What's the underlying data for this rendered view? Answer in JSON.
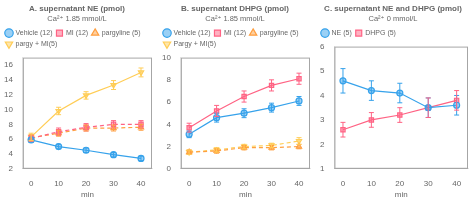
{
  "chart_data": [
    {
      "type": "line",
      "title": "A. supernatant NE (pmol)",
      "subtitle": "Ca²⁺ 1.85 mmol/L",
      "x_label": "min",
      "x": [
        0,
        10,
        20,
        30,
        40
      ],
      "xlim": [
        -3,
        44
      ],
      "xticks": [
        0,
        10,
        20,
        30,
        40
      ],
      "ylim": [
        2,
        17
      ],
      "yticks": [
        2,
        4,
        6,
        8,
        10,
        12,
        14,
        16
      ],
      "grid": false,
      "legend": "upper left",
      "series": [
        {
          "name": "Vehicle (12)",
          "values": [
            5.9,
            5.0,
            4.5,
            3.9,
            3.4
          ],
          "errors": [
            0.3,
            0.3,
            0.3,
            0.3,
            0.3
          ],
          "marker": "circle",
          "line_style": "solid"
        },
        {
          "name": "MI (12)",
          "values": [
            6.1,
            7.0,
            7.6,
            8.0,
            8.0
          ],
          "errors": [
            0.4,
            0.5,
            0.5,
            0.5,
            0.5
          ],
          "marker": "square",
          "line_style": "dashed"
        },
        {
          "name": "pargyline (5)",
          "values": [
            6.2,
            6.8,
            7.5,
            7.5,
            7.6
          ],
          "errors": [
            0.4,
            0.4,
            0.4,
            0.4,
            0.4
          ],
          "marker": "triangle-up",
          "line_style": "dashed"
        },
        {
          "name": "pargy + MI(5)",
          "values": [
            6.3,
            9.8,
            11.9,
            13.3,
            15.0
          ],
          "errors": [
            0.5,
            0.5,
            0.5,
            0.6,
            0.6
          ],
          "marker": "triangle-down",
          "line_style": "solid"
        }
      ]
    },
    {
      "type": "line",
      "title": "B. supernatant DHPG (pmol)",
      "subtitle": "Ca²⁺ 1.85 mmol/L",
      "x_label": "min",
      "x": [
        0,
        10,
        20,
        30,
        40
      ],
      "xlim": [
        -3,
        44
      ],
      "xticks": [
        0,
        10,
        20,
        30,
        40
      ],
      "ylim": [
        0,
        10
      ],
      "yticks": [
        0,
        2,
        4,
        6,
        8,
        10
      ],
      "grid": false,
      "legend": "upper left",
      "series": [
        {
          "name": "Vehicle (12)",
          "values": [
            3.1,
            4.6,
            5.0,
            5.5,
            6.1
          ],
          "errors": [
            0.3,
            0.4,
            0.4,
            0.4,
            0.4
          ],
          "marker": "circle",
          "line_style": "solid"
        },
        {
          "name": "MI (12)",
          "values": [
            3.7,
            5.2,
            6.5,
            7.5,
            8.1
          ],
          "errors": [
            0.4,
            0.5,
            0.5,
            0.5,
            0.5
          ],
          "marker": "square",
          "line_style": "solid"
        },
        {
          "name": "pargyline (5)",
          "values": [
            1.5,
            1.6,
            1.9,
            1.9,
            2.0
          ],
          "errors": [
            0.2,
            0.2,
            0.2,
            0.2,
            0.2
          ],
          "marker": "triangle-up",
          "line_style": "dashed"
        },
        {
          "name": "Pargy + MI(5)",
          "values": [
            1.5,
            1.7,
            2.0,
            2.1,
            2.5
          ],
          "errors": [
            0.2,
            0.2,
            0.2,
            0.2,
            0.3
          ],
          "marker": "triangle-down",
          "line_style": "dashed"
        }
      ]
    },
    {
      "type": "line",
      "title": "C. supernatant NE and DHPG (pmol)",
      "subtitle": "Ca²⁺ 0 mmol/L",
      "x_label": "min",
      "x": [
        0,
        10,
        20,
        30,
        40
      ],
      "xlim": [
        -3,
        44
      ],
      "xticks": [
        0,
        10,
        20,
        30,
        40
      ],
      "ylim": [
        1,
        6
      ],
      "yticks": [
        1,
        2,
        3,
        4,
        5,
        6
      ],
      "grid": false,
      "legend": "upper left",
      "series": [
        {
          "name": "NE (5)",
          "values": [
            4.6,
            4.2,
            4.1,
            3.5,
            3.6
          ],
          "errors": [
            0.5,
            0.4,
            0.4,
            0.4,
            0.4
          ],
          "marker": "circle",
          "line_style": "solid"
        },
        {
          "name": "DHPG (5)",
          "values": [
            2.6,
            3.0,
            3.2,
            3.5,
            3.8
          ],
          "errors": [
            0.3,
            0.3,
            0.3,
            0.4,
            0.4
          ],
          "marker": "square",
          "line_style": "solid"
        }
      ]
    }
  ]
}
